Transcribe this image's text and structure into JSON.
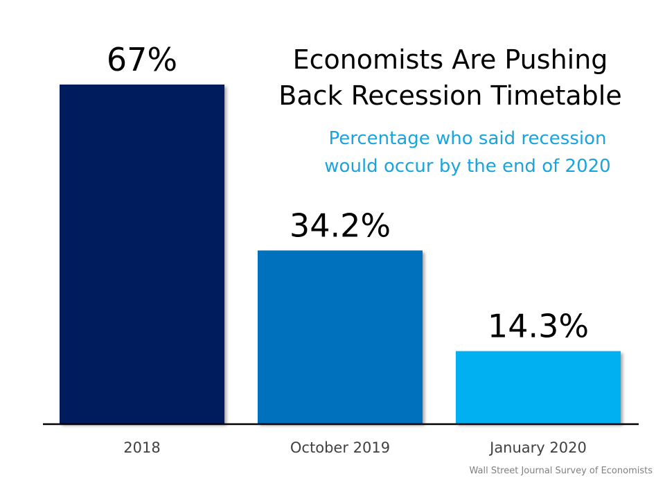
{
  "chart_data": {
    "type": "bar",
    "title_lines": [
      "Economists Are Pushing",
      "Back Recession Timetable"
    ],
    "subtitle_lines": [
      "Percentage who said recession",
      "would occur by the end of 2020"
    ],
    "categories": [
      "2018",
      "October 2019",
      "January 2020"
    ],
    "values": [
      67,
      34.2,
      14.3
    ],
    "value_labels": [
      "67%",
      "34.2%",
      "14.3%"
    ],
    "bar_colors": [
      "#001d5b",
      "#0071bd",
      "#00b0f0"
    ],
    "ylim": [
      0,
      67
    ],
    "grid": false,
    "source": "Wall Street Journal Survey of Economists"
  },
  "colors": {
    "subtitle": "#1aa3dd",
    "axis": "#000000",
    "tick_label": "#404040"
  }
}
